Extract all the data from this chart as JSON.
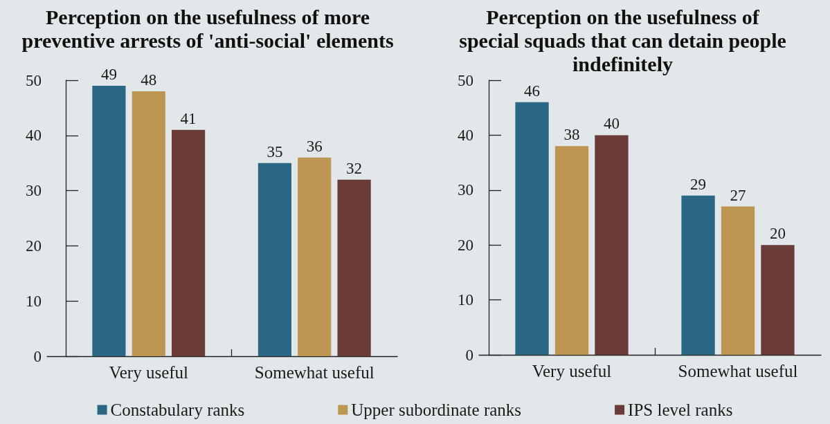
{
  "chart_data": [
    {
      "type": "bar",
      "title": "Perception on the usefulness of more\npreventive arrests of 'anti-social' elements",
      "categories": [
        "Very useful",
        "Somewhat useful"
      ],
      "series": [
        {
          "name": "Constabulary ranks",
          "color": "#2b6784",
          "values": [
            49,
            35
          ]
        },
        {
          "name": "Upper subordinate ranks",
          "color": "#bc9652",
          "values": [
            48,
            36
          ]
        },
        {
          "name": "IPS level ranks",
          "color": "#6a3b39",
          "values": [
            41,
            32
          ]
        }
      ],
      "ylim": [
        0,
        50
      ],
      "yticks": [
        0,
        10,
        20,
        30,
        40,
        50
      ],
      "data_labels": true,
      "legend": "bottom"
    },
    {
      "type": "bar",
      "title": "Perception on the usefulness of\nspecial squads that can detain people\nindefinitely",
      "categories": [
        "Very useful",
        "Somewhat useful"
      ],
      "series": [
        {
          "name": "Constabulary ranks",
          "color": "#2b6784",
          "values": [
            46,
            29
          ]
        },
        {
          "name": "Upper subordinate ranks",
          "color": "#bc9652",
          "values": [
            38,
            27
          ]
        },
        {
          "name": "IPS level ranks",
          "color": "#6a3b39",
          "values": [
            40,
            20
          ]
        }
      ],
      "ylim": [
        0,
        50
      ],
      "yticks": [
        0,
        10,
        20,
        30,
        40,
        50
      ],
      "data_labels": true
    }
  ]
}
